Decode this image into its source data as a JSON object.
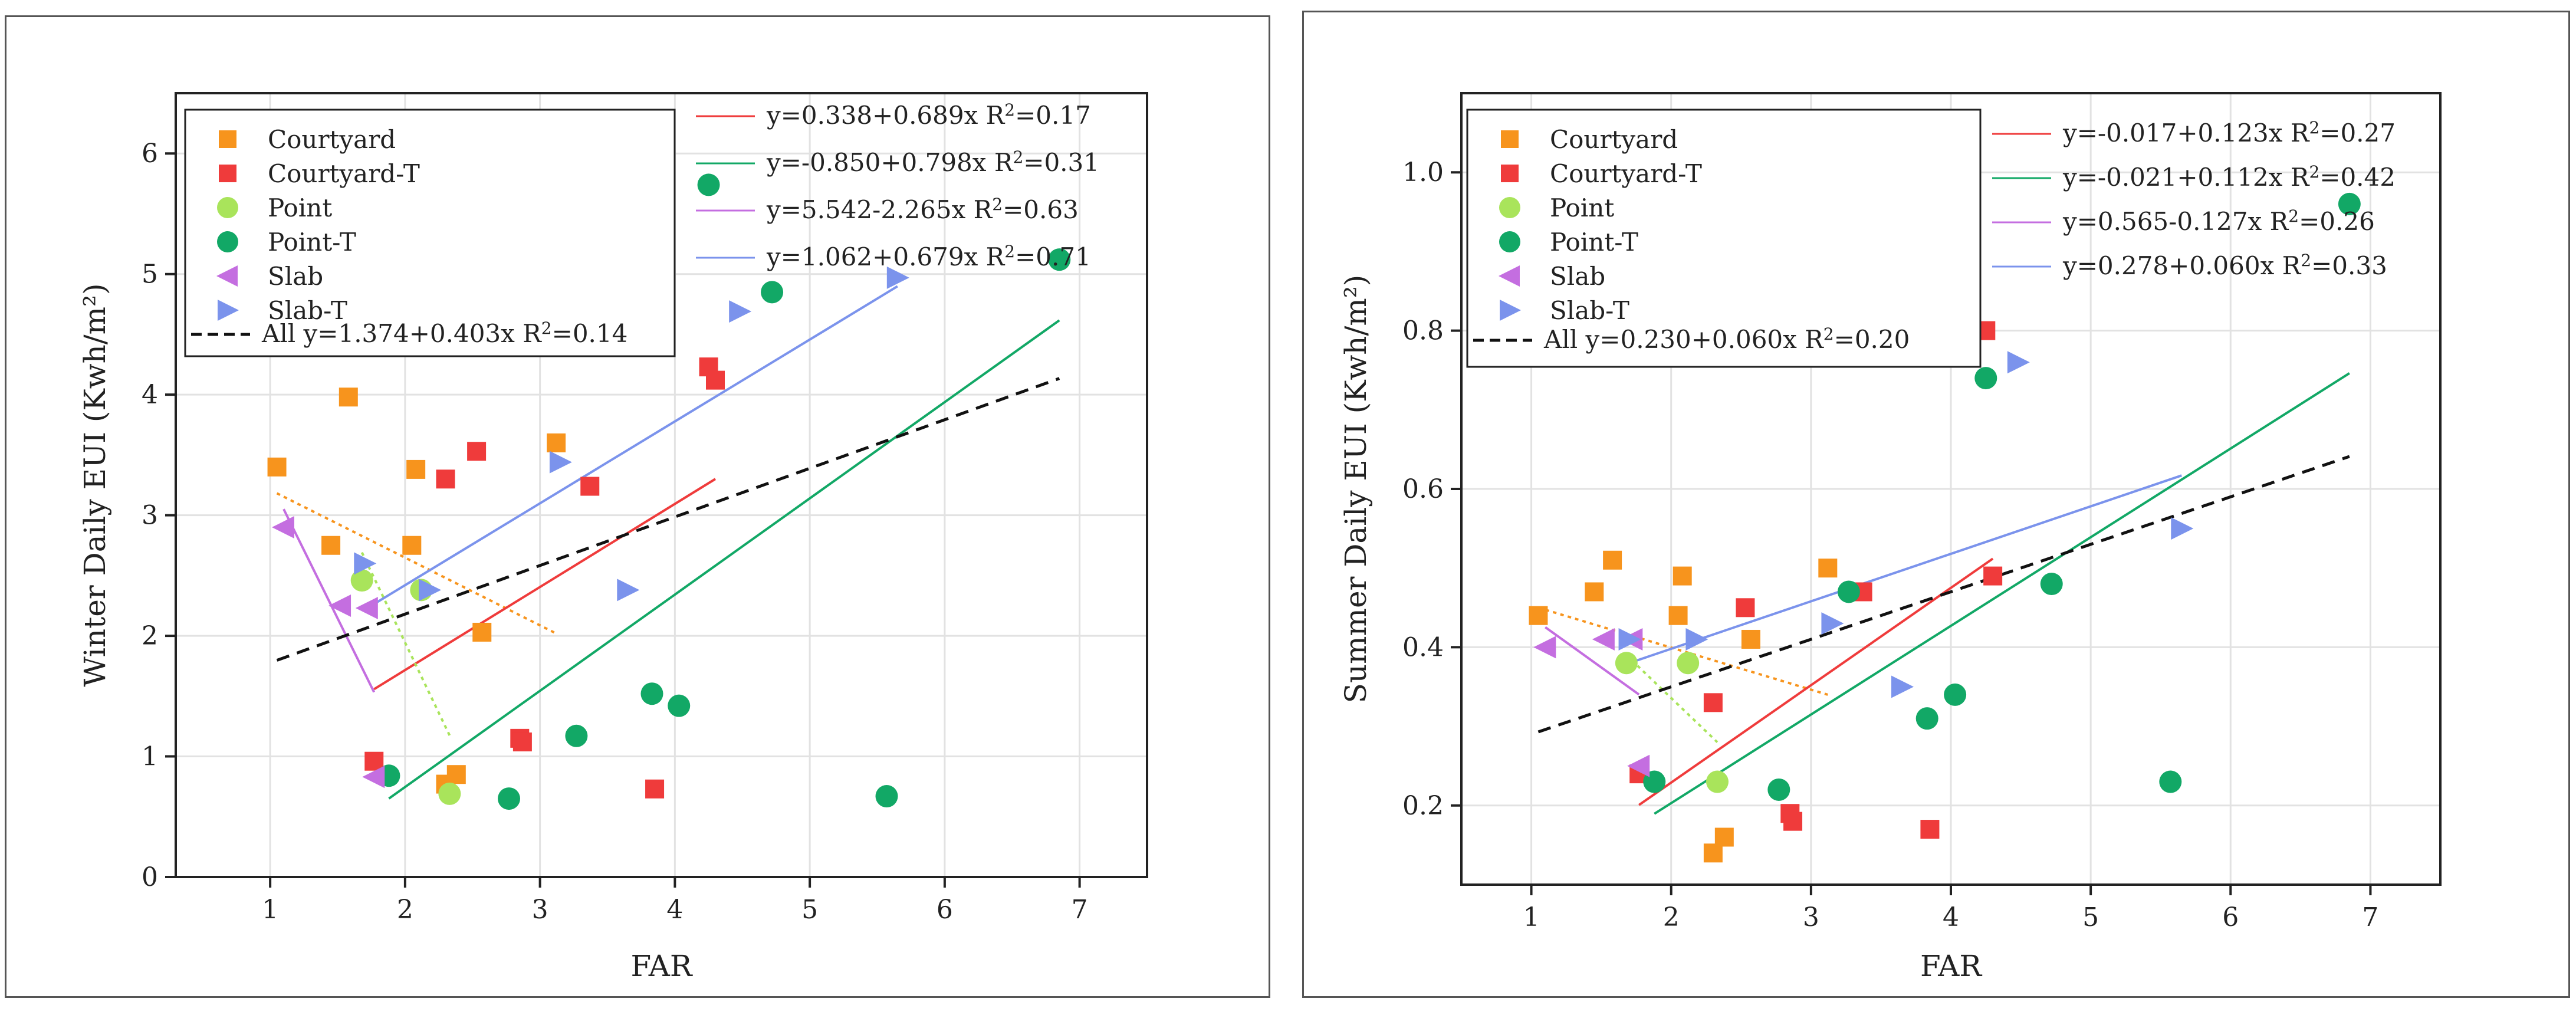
{
  "chart_data": [
    {
      "type": "scatter",
      "title": "",
      "xlabel": "FAR",
      "ylabel": "Winter Daily EUI (Kwh/m²)",
      "xlim": [
        0.3,
        7.5
      ],
      "ylim": [
        0,
        6.5
      ],
      "xticks": [
        "1",
        "2",
        "3",
        "4",
        "5",
        "6",
        "7"
      ],
      "yticks": [
        "0",
        "1",
        "2",
        "3",
        "4",
        "5",
        "6"
      ],
      "grid": true,
      "series": [
        {
          "name": "Courtyard",
          "marker": "square",
          "color": "#f7941d",
          "points": [
            [
              1.05,
              3.4
            ],
            [
              1.45,
              2.75
            ],
            [
              1.58,
              3.98
            ],
            [
              2.05,
              2.75
            ],
            [
              2.08,
              3.38
            ],
            [
              2.57,
              2.03
            ],
            [
              2.3,
              0.77
            ],
            [
              2.38,
              0.85
            ],
            [
              3.12,
              3.6
            ]
          ]
        },
        {
          "name": "Courtyard-T",
          "marker": "square",
          "color": "#ef3b3b",
          "points": [
            [
              1.77,
              0.96
            ],
            [
              2.3,
              3.3
            ],
            [
              2.53,
              3.53
            ],
            [
              2.85,
              1.15
            ],
            [
              2.87,
              1.12
            ],
            [
              3.37,
              3.24
            ],
            [
              3.85,
              0.73
            ],
            [
              4.25,
              4.23
            ],
            [
              4.3,
              4.12
            ]
          ]
        },
        {
          "name": "Point",
          "marker": "circle",
          "color": "#a9e45b",
          "points": [
            [
              1.68,
              2.46
            ],
            [
              2.12,
              2.38
            ],
            [
              2.33,
              0.69
            ]
          ]
        },
        {
          "name": "Point-T",
          "marker": "circle",
          "color": "#12a866",
          "points": [
            [
              1.88,
              0.84
            ],
            [
              2.77,
              0.65
            ],
            [
              3.27,
              1.17
            ],
            [
              3.83,
              1.52
            ],
            [
              4.03,
              1.42
            ],
            [
              4.25,
              5.74
            ],
            [
              4.72,
              4.85
            ],
            [
              5.57,
              0.67
            ],
            [
              6.85,
              5.12
            ]
          ]
        },
        {
          "name": "Slab",
          "marker": "triangle-left",
          "color": "#c46ee0",
          "points": [
            [
              1.1,
              2.9
            ],
            [
              1.52,
              2.25
            ],
            [
              1.72,
              2.23
            ],
            [
              1.77,
              0.83
            ]
          ]
        },
        {
          "name": "Slab-T",
          "marker": "triangle-right",
          "color": "#7b93ec",
          "points": [
            [
              1.7,
              2.6
            ],
            [
              2.18,
              2.38
            ],
            [
              3.15,
              3.44
            ],
            [
              3.65,
              2.38
            ],
            [
              4.48,
              4.69
            ],
            [
              5.65,
              4.97
            ]
          ]
        }
      ],
      "fits": [
        {
          "series": "Courtyard",
          "style": "dotted",
          "color": "#f7941d",
          "x": [
            1.05,
            3.12
          ]
        },
        {
          "series": "Courtyard-T",
          "label": "y=0.338+0.689x R",
          "r2": "=0.17",
          "color": "#ef3b3b",
          "intercept": 0.338,
          "slope": 0.689,
          "x": [
            1.77,
            4.3
          ]
        },
        {
          "series": "Point",
          "style": "dotted",
          "color": "#a9e45b",
          "x": [
            1.68,
            2.33
          ]
        },
        {
          "series": "Point-T",
          "label": "y=-0.850+0.798x R",
          "r2": "=0.31",
          "color": "#12a866",
          "intercept": -0.85,
          "slope": 0.798,
          "x": [
            1.88,
            6.85
          ]
        },
        {
          "series": "Slab",
          "label": "y=5.542-2.265x R",
          "r2": "=0.63",
          "color": "#c46ee0",
          "intercept": 5.542,
          "slope": -2.265,
          "x": [
            1.1,
            1.77
          ]
        },
        {
          "series": "Slab-T",
          "label": "y=1.062+0.679x R",
          "r2": "=0.71",
          "color": "#7b93ec",
          "intercept": 1.062,
          "slope": 0.679,
          "x": [
            1.7,
            5.65
          ]
        },
        {
          "series": "All",
          "label": "All y=1.374+0.403x R",
          "r2": "=0.14",
          "color": "#111111",
          "style": "dashed",
          "intercept": 1.374,
          "slope": 0.403,
          "x": [
            1.05,
            6.85
          ]
        }
      ]
    },
    {
      "type": "scatter",
      "title": "",
      "xlabel": "FAR",
      "ylabel": "Summer Daily EUI (Kwh/m²)",
      "xlim": [
        0.5,
        7.5
      ],
      "ylim": [
        0.1,
        1.1
      ],
      "xticks": [
        "1",
        "2",
        "3",
        "4",
        "5",
        "6",
        "7"
      ],
      "yticks": [
        "0.2",
        "0.4",
        "0.6",
        "0.8",
        "1.0"
      ],
      "grid": true,
      "series": [
        {
          "name": "Courtyard",
          "marker": "square",
          "color": "#f7941d",
          "points": [
            [
              1.05,
              0.44
            ],
            [
              1.45,
              0.47
            ],
            [
              1.58,
              0.51
            ],
            [
              2.05,
              0.44
            ],
            [
              2.08,
              0.49
            ],
            [
              2.57,
              0.41
            ],
            [
              2.3,
              0.14
            ],
            [
              2.38,
              0.16
            ],
            [
              3.12,
              0.5
            ]
          ]
        },
        {
          "name": "Courtyard-T",
          "marker": "square",
          "color": "#ef3b3b",
          "points": [
            [
              1.77,
              0.24
            ],
            [
              2.3,
              0.33
            ],
            [
              2.53,
              0.45
            ],
            [
              2.85,
              0.19
            ],
            [
              2.87,
              0.18
            ],
            [
              3.37,
              0.47
            ],
            [
              3.85,
              0.17
            ],
            [
              4.25,
              0.8
            ],
            [
              4.3,
              0.49
            ]
          ]
        },
        {
          "name": "Point",
          "marker": "circle",
          "color": "#a9e45b",
          "points": [
            [
              1.68,
              0.38
            ],
            [
              2.12,
              0.38
            ],
            [
              2.33,
              0.23
            ]
          ]
        },
        {
          "name": "Point-T",
          "marker": "circle",
          "color": "#12a866",
          "points": [
            [
              1.88,
              0.23
            ],
            [
              2.77,
              0.22
            ],
            [
              3.27,
              0.47
            ],
            [
              3.83,
              0.31
            ],
            [
              4.03,
              0.34
            ],
            [
              4.25,
              0.74
            ],
            [
              4.72,
              0.48
            ],
            [
              5.57,
              0.23
            ],
            [
              6.85,
              0.96
            ]
          ]
        },
        {
          "name": "Slab",
          "marker": "triangle-left",
          "color": "#c46ee0",
          "points": [
            [
              1.1,
              0.4
            ],
            [
              1.52,
              0.41
            ],
            [
              1.72,
              0.41
            ],
            [
              1.77,
              0.25
            ]
          ]
        },
        {
          "name": "Slab-T",
          "marker": "triangle-right",
          "color": "#7b93ec",
          "points": [
            [
              1.7,
              0.41
            ],
            [
              2.18,
              0.41
            ],
            [
              3.15,
              0.43
            ],
            [
              3.65,
              0.35
            ],
            [
              4.48,
              0.76
            ],
            [
              5.65,
              0.55
            ]
          ]
        }
      ],
      "fits": [
        {
          "series": "Courtyard",
          "style": "dotted",
          "color": "#f7941d",
          "x": [
            1.05,
            3.12
          ],
          "y": [
            0.45,
            0.34
          ]
        },
        {
          "series": "Courtyard-T",
          "label": "y=-0.017+0.123x R",
          "r2": "=0.27",
          "color": "#ef3b3b",
          "intercept": -0.017,
          "slope": 0.123,
          "x": [
            1.77,
            4.3
          ]
        },
        {
          "series": "Point",
          "style": "dotted",
          "color": "#a9e45b",
          "x": [
            1.68,
            2.33
          ],
          "y": [
            0.39,
            0.28
          ]
        },
        {
          "series": "Point-T",
          "label": "y=-0.021+0.112x R",
          "r2": "=0.42",
          "color": "#12a866",
          "intercept": -0.021,
          "slope": 0.112,
          "x": [
            1.88,
            6.85
          ]
        },
        {
          "series": "Slab",
          "label": "y=0.565-0.127x R",
          "r2": "=0.26",
          "color": "#c46ee0",
          "intercept": 0.565,
          "slope": -0.127,
          "x": [
            1.1,
            1.77
          ]
        },
        {
          "series": "Slab-T",
          "label": "y=0.278+0.060x R",
          "r2": "=0.33",
          "color": "#7b93ec",
          "intercept": 0.278,
          "slope": 0.06,
          "x": [
            1.7,
            5.65
          ]
        },
        {
          "series": "All",
          "label": "All y=0.230+0.060x R",
          "r2": "=0.20",
          "color": "#111111",
          "style": "dashed",
          "intercept": 0.23,
          "slope": 0.06,
          "x": [
            1.05,
            6.85
          ]
        }
      ]
    }
  ]
}
